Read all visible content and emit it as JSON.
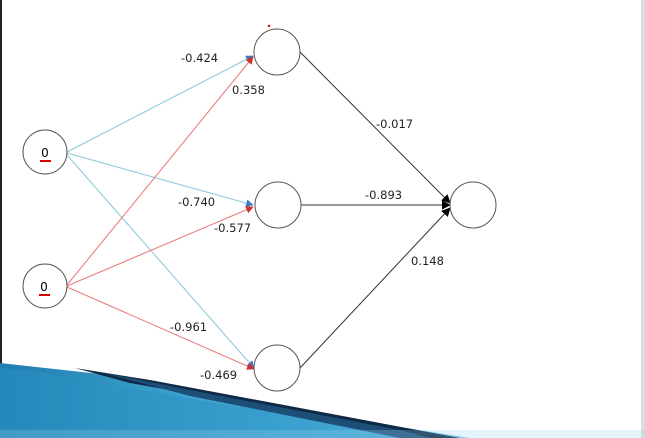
{
  "network": {
    "inputs": [
      {
        "value": "0"
      },
      {
        "value": "0"
      }
    ],
    "weights": {
      "input1_to_hidden1": "-0.424",
      "input2_to_hidden1": "0.358",
      "input1_to_hidden2": "-0.740",
      "input2_to_hidden2": "-0.577",
      "input1_to_hidden3": "-0.961",
      "input2_to_hidden3": "-0.469",
      "hidden1_to_output": "-0.017",
      "hidden2_to_output": "-0.893",
      "hidden3_to_output": "0.148"
    }
  },
  "colors": {
    "input1_connection": "#7ec8d8",
    "input2_connection": "#e86a6a",
    "output_connection": "#333333",
    "underline": "#d40000",
    "slide_band_dark": "#0c3558",
    "slide_band_light": "#3aa0cc"
  }
}
